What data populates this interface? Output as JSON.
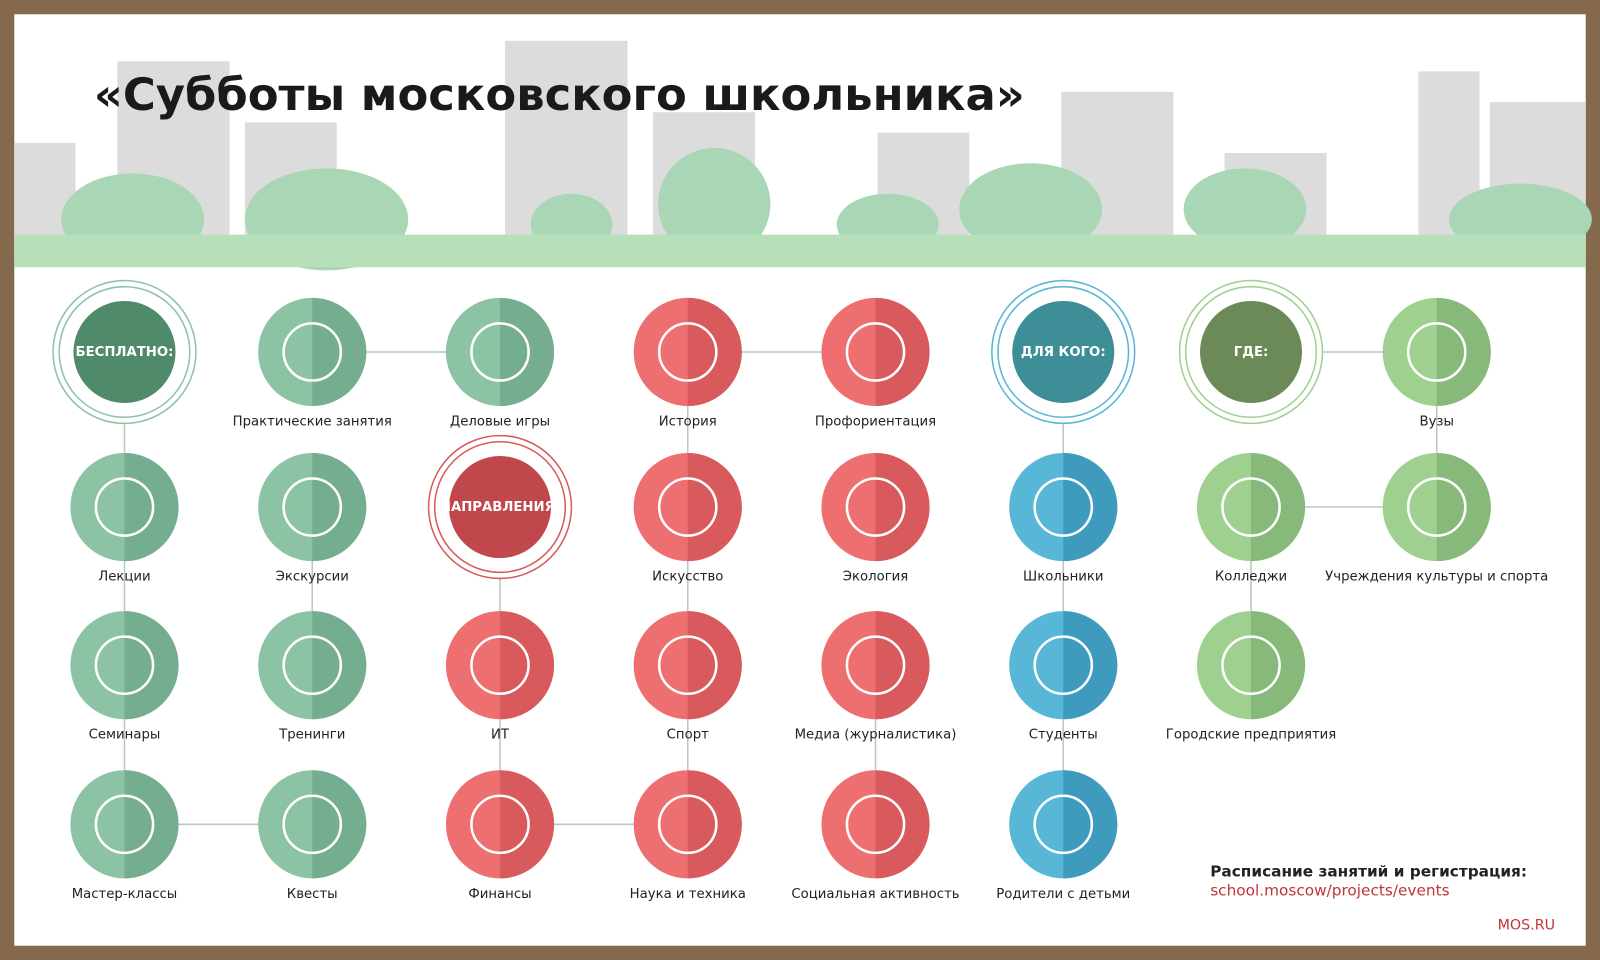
{
  "title": "«Субботы московского школьника»",
  "hubs": [
    {
      "label": "БЕСПЛАТНО:"
    },
    {
      "label": "НАПРАВЛЕНИЯ:"
    },
    {
      "label": "ДЛЯ КОГО:"
    },
    {
      "label": "ГДЕ:"
    }
  ],
  "nodes": [
    {
      "label": "Практические занятия"
    },
    {
      "label": "Деловые игры"
    },
    {
      "label": "Лекции"
    },
    {
      "label": "Экскурсии"
    },
    {
      "label": "Семинары"
    },
    {
      "label": "Тренинги"
    },
    {
      "label": "Мастер-классы"
    },
    {
      "label": "Квесты"
    },
    {
      "label": "История"
    },
    {
      "label": "Профориентация"
    },
    {
      "label": "Искусство"
    },
    {
      "label": "Экология"
    },
    {
      "label": "ИТ"
    },
    {
      "label": "Спорт"
    },
    {
      "label": "Медиа (журналистика)"
    },
    {
      "label": "Финансы"
    },
    {
      "label": "Наука и техника"
    },
    {
      "label": "Социальная активность"
    },
    {
      "label": "Школьники"
    },
    {
      "label": "Студенты"
    },
    {
      "label": "Родители с детьми"
    },
    {
      "label": "Вузы"
    },
    {
      "label": "Колледжи"
    },
    {
      "label": "Учреждения культуры и спорта"
    },
    {
      "label": "Городские предприятия"
    }
  ],
  "footer": {
    "schedule": "Расписание занятий и регистрация:",
    "link": "school.moscow/projects/events",
    "brand": "MOS.RU"
  }
}
